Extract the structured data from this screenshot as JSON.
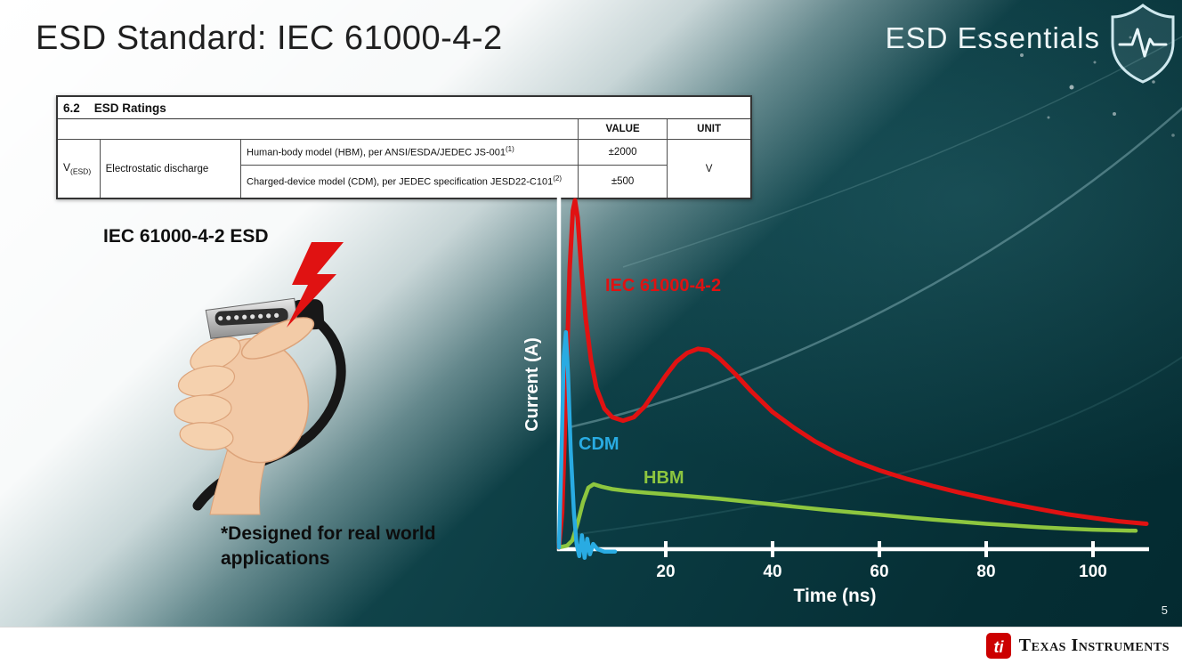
{
  "slide": {
    "title": "ESD Standard: IEC 61000-4-2",
    "series_name": "ESD Essentials",
    "page_number": "5"
  },
  "ratings_table": {
    "section_number": "6.2",
    "section_title": "ESD Ratings",
    "col_value": "VALUE",
    "col_unit": "UNIT",
    "symbol_main": "V",
    "symbol_sub": "(ESD)",
    "parameter": "Electrostatic discharge",
    "rows": [
      {
        "condition": "Human-body model (HBM), per ANSI/ESDA/JEDEC JS-001",
        "condition_sup": "(1)",
        "value": "±2000"
      },
      {
        "condition": "Charged-device model (CDM), per JEDEC specification JESD22-C101",
        "condition_sup": "(2)",
        "value": "±500"
      }
    ],
    "unit": "V"
  },
  "illustration": {
    "caption": "IEC 61000-4-2 ESD",
    "note": "*Designed for real world applications"
  },
  "footer": {
    "brand": "Texas Instruments"
  },
  "icons": {
    "brand_logo": "shield-with-pulse-icon",
    "strike": "lightning-bolt-icon",
    "footer_logo": "ti-bug-icon"
  },
  "colors": {
    "iec_red": "#e01212",
    "cdm_blue": "#29abe2",
    "hbm_green": "#8dc63f",
    "ti_red": "#cc0000",
    "slide_teal": "#0a3a41"
  },
  "chart_data": {
    "type": "line",
    "title": "",
    "xlabel": "Time (ns)",
    "ylabel": "Current (A)",
    "x_ticks": [
      20,
      40,
      60,
      80,
      100
    ],
    "x_range": [
      0,
      110
    ],
    "y_axis_values_shown": false,
    "legend_position": "inline",
    "series": [
      {
        "name": "IEC 61000-4-2",
        "color": "#e01212",
        "points": [
          [
            0,
            0
          ],
          [
            0.6,
            0.1
          ],
          [
            1.2,
            0.38
          ],
          [
            2,
            0.8
          ],
          [
            2.6,
            0.97
          ],
          [
            3,
            1
          ],
          [
            3.5,
            0.95
          ],
          [
            4.2,
            0.8
          ],
          [
            5,
            0.66
          ],
          [
            6,
            0.54
          ],
          [
            7,
            0.46
          ],
          [
            8.5,
            0.4
          ],
          [
            10,
            0.375
          ],
          [
            12,
            0.365
          ],
          [
            14,
            0.375
          ],
          [
            16,
            0.405
          ],
          [
            18,
            0.45
          ],
          [
            20,
            0.495
          ],
          [
            22,
            0.535
          ],
          [
            24,
            0.56
          ],
          [
            26,
            0.572
          ],
          [
            28,
            0.568
          ],
          [
            30,
            0.545
          ],
          [
            33,
            0.5
          ],
          [
            36,
            0.45
          ],
          [
            40,
            0.39
          ],
          [
            44,
            0.345
          ],
          [
            48,
            0.305
          ],
          [
            52,
            0.272
          ],
          [
            56,
            0.245
          ],
          [
            60,
            0.222
          ],
          [
            65,
            0.198
          ],
          [
            70,
            0.177
          ],
          [
            75,
            0.158
          ],
          [
            80,
            0.141
          ],
          [
            85,
            0.125
          ],
          [
            90,
            0.11
          ],
          [
            95,
            0.096
          ],
          [
            100,
            0.085
          ],
          [
            105,
            0.075
          ],
          [
            110,
            0.068
          ]
        ]
      },
      {
        "name": "CDM",
        "color": "#29abe2",
        "points": [
          [
            0,
            0
          ],
          [
            0.4,
            0.22
          ],
          [
            0.9,
            0.55
          ],
          [
            1.3,
            0.62
          ],
          [
            1.7,
            0.5
          ],
          [
            2.2,
            0.28
          ],
          [
            2.8,
            0.1
          ],
          [
            3.3,
            0.01
          ],
          [
            3.8,
            -0.025
          ],
          [
            4.3,
            0.035
          ],
          [
            4.8,
            -0.03
          ],
          [
            5.3,
            0.025
          ],
          [
            5.8,
            -0.02
          ],
          [
            6.4,
            0.01
          ],
          [
            7.2,
            -0.005
          ],
          [
            8.5,
            -0.012
          ],
          [
            10.5,
            -0.012
          ]
        ]
      },
      {
        "name": "HBM",
        "color": "#8dc63f",
        "points": [
          [
            0,
            0
          ],
          [
            1.5,
            0.005
          ],
          [
            2.5,
            0.02
          ],
          [
            3.5,
            0.07
          ],
          [
            4.5,
            0.13
          ],
          [
            5.5,
            0.172
          ],
          [
            6.5,
            0.182
          ],
          [
            8,
            0.175
          ],
          [
            10,
            0.168
          ],
          [
            13,
            0.162
          ],
          [
            16,
            0.158
          ],
          [
            20,
            0.153
          ],
          [
            25,
            0.147
          ],
          [
            30,
            0.14
          ],
          [
            35,
            0.132
          ],
          [
            40,
            0.124
          ],
          [
            45,
            0.116
          ],
          [
            50,
            0.108
          ],
          [
            55,
            0.101
          ],
          [
            60,
            0.094
          ],
          [
            65,
            0.087
          ],
          [
            70,
            0.08
          ],
          [
            75,
            0.074
          ],
          [
            80,
            0.068
          ],
          [
            85,
            0.063
          ],
          [
            90,
            0.058
          ],
          [
            95,
            0.054
          ],
          [
            100,
            0.051
          ],
          [
            105,
            0.049
          ],
          [
            108,
            0.048
          ]
        ]
      }
    ]
  }
}
